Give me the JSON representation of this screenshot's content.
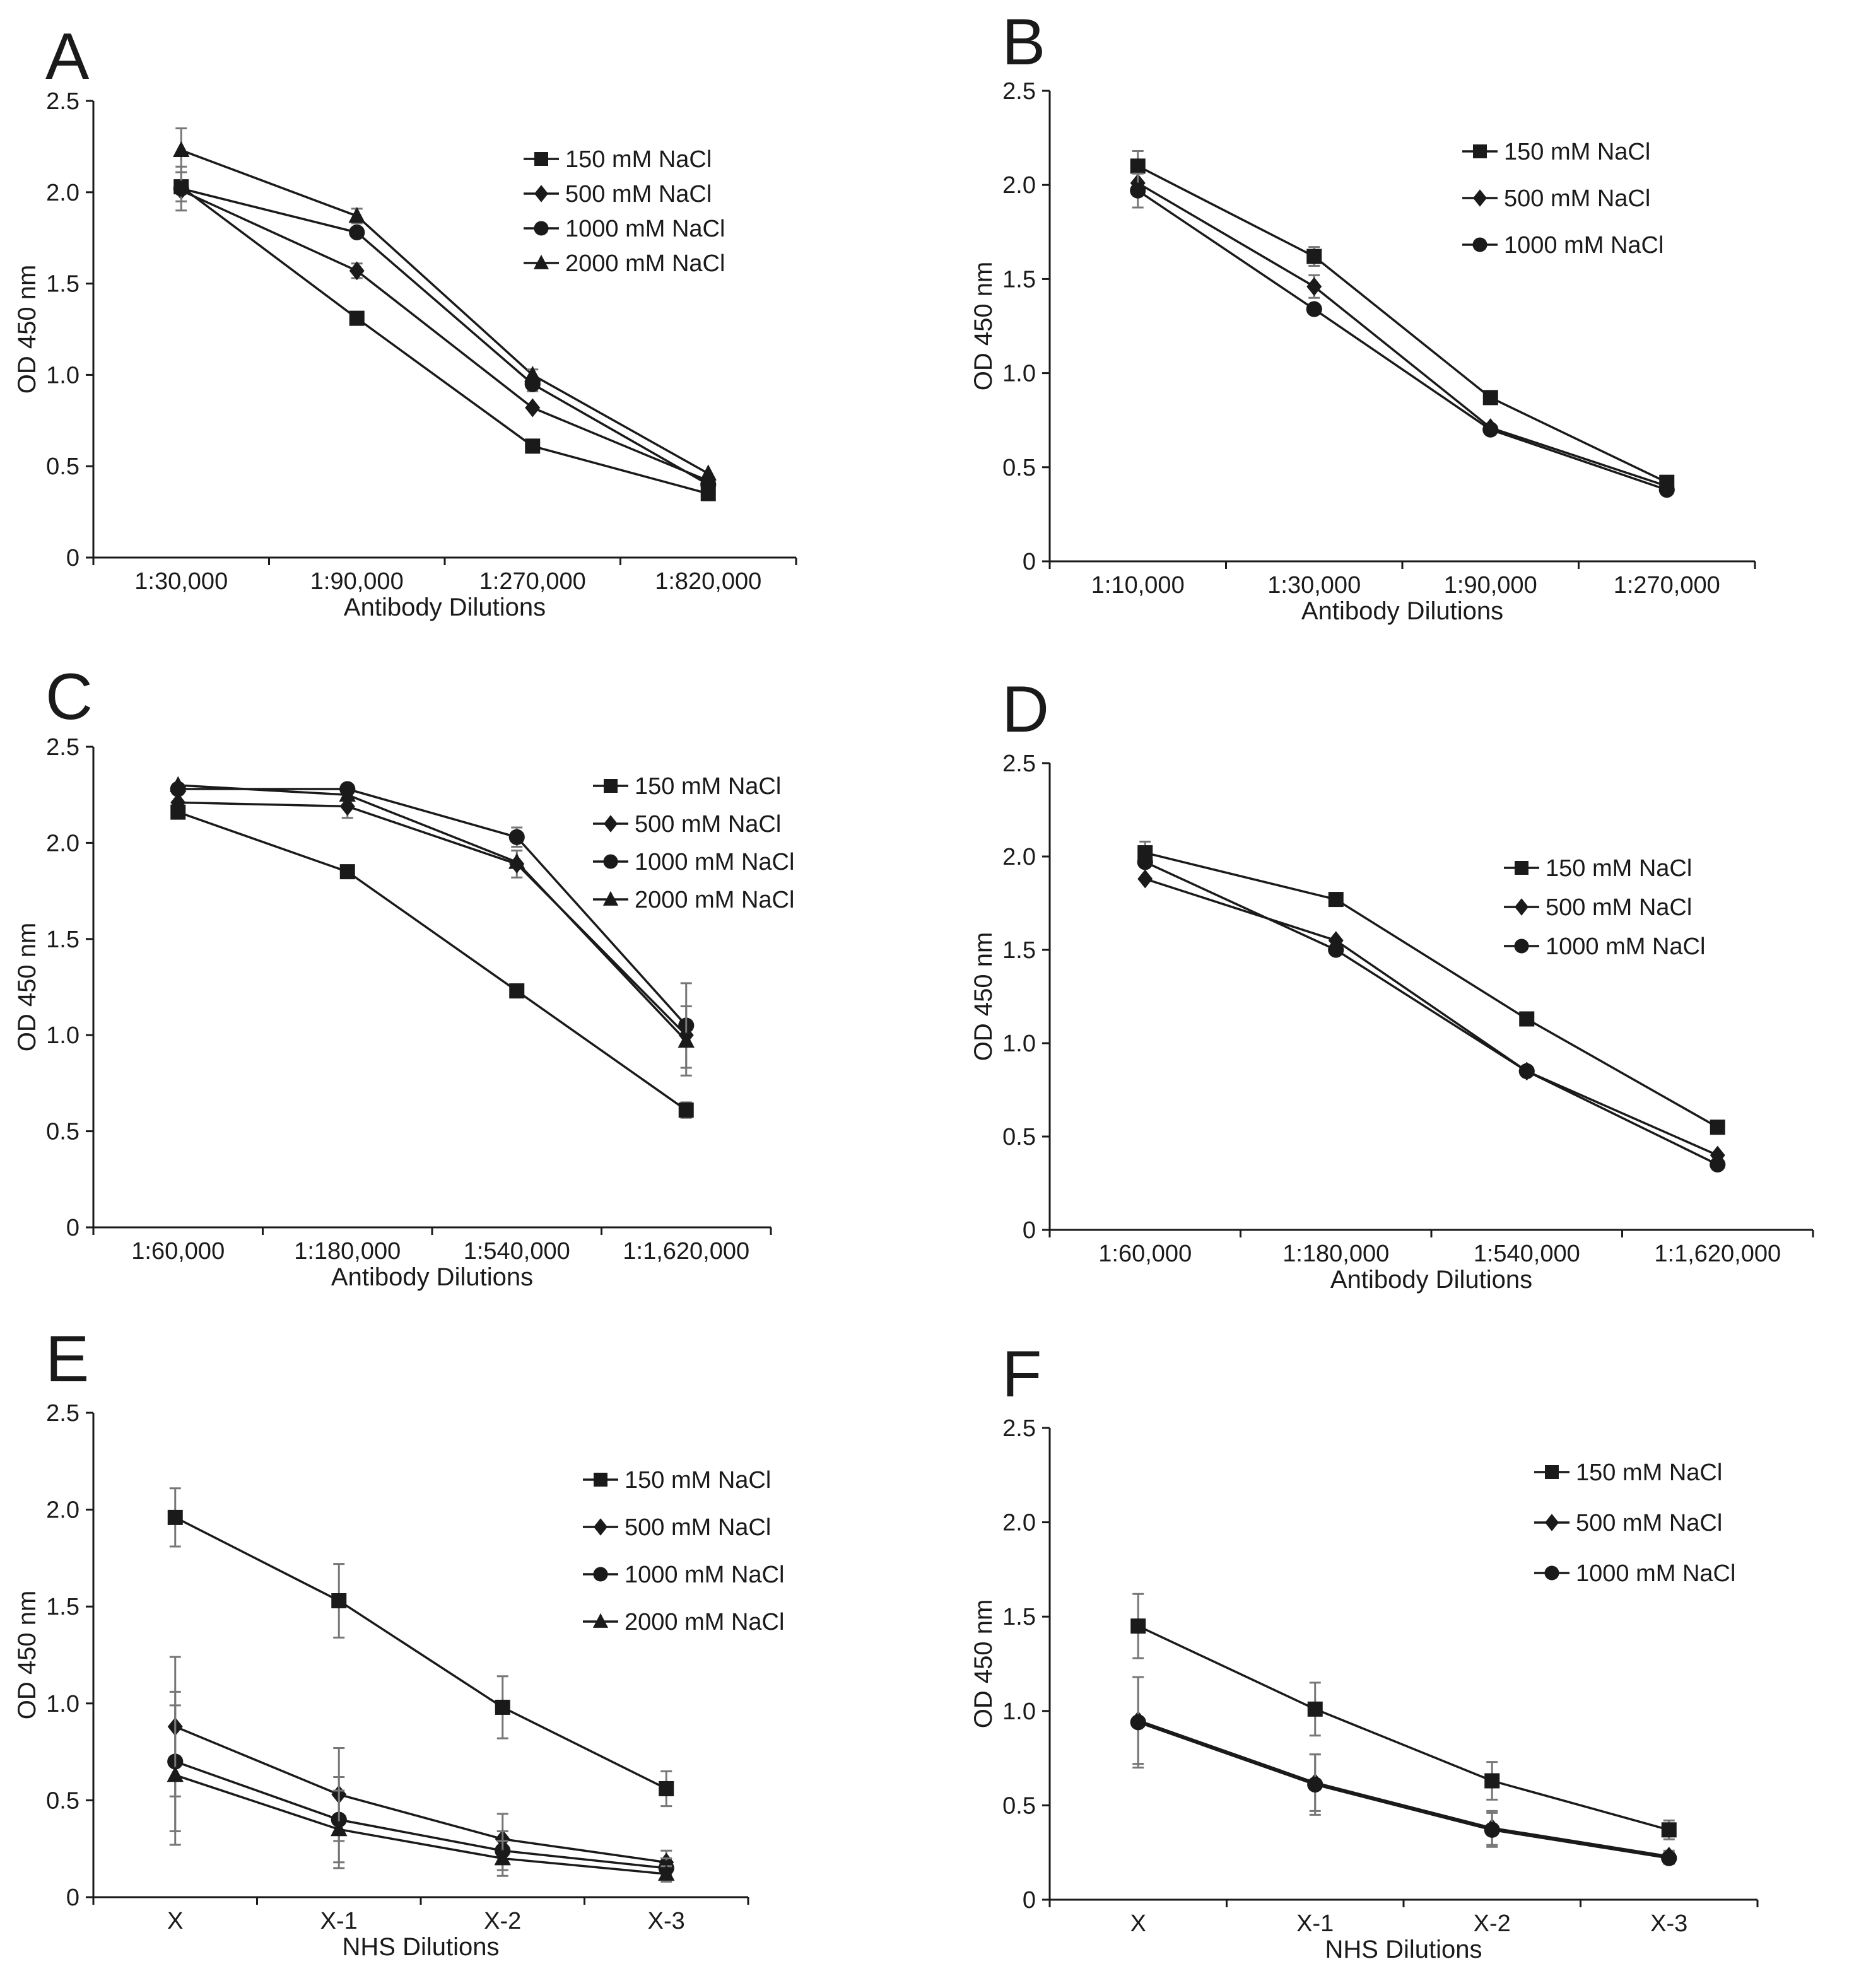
{
  "chart_data": [
    {
      "panel": "A",
      "type": "line",
      "xlabel": "Antibody Dilutions",
      "ylabel": "OD 450 nm",
      "categories": [
        "1:30,000",
        "1:90,000",
        "1:270,000",
        "1:820,000"
      ],
      "ylim": [
        0,
        2.5
      ],
      "yticks": [
        "0",
        "0.5",
        "1.0",
        "1.5",
        "2.0",
        "2.5"
      ],
      "legend_position": "top-right",
      "series": [
        {
          "name": "150 mM NaCl",
          "marker": "square",
          "values": [
            2.03,
            1.31,
            0.61,
            0.35
          ],
          "errors": [
            0.08,
            0,
            0,
            0
          ]
        },
        {
          "name": "500 mM NaCl",
          "marker": "diamond",
          "values": [
            2.01,
            1.57,
            0.82,
            0.42
          ],
          "errors": [
            0,
            0.04,
            0,
            0
          ]
        },
        {
          "name": "1000 mM NaCl",
          "marker": "circle",
          "values": [
            2.02,
            1.78,
            0.95,
            0.4
          ],
          "errors": [
            0.12,
            0,
            0.04,
            0
          ]
        },
        {
          "name": "2000 mM NaCl",
          "marker": "triangle",
          "values": [
            2.23,
            1.87,
            1.0,
            0.46
          ],
          "errors": [
            0.12,
            0.04,
            0.03,
            0
          ]
        }
      ]
    },
    {
      "panel": "B",
      "type": "line",
      "xlabel": "Antibody Dilutions",
      "ylabel": "OD 450 nm",
      "categories": [
        "1:10,000",
        "1:30,000",
        "1:90,000",
        "1:270,000"
      ],
      "ylim": [
        0,
        2.5
      ],
      "yticks": [
        "0",
        "0.5",
        "1.0",
        "1.5",
        "2.0",
        "2.5"
      ],
      "legend_position": "top-right",
      "series": [
        {
          "name": "150 mM NaCl",
          "marker": "square",
          "values": [
            2.1,
            1.62,
            0.87,
            0.42
          ],
          "errors": [
            0.08,
            0.05,
            0,
            0
          ]
        },
        {
          "name": "500 mM NaCl",
          "marker": "diamond",
          "values": [
            2.01,
            1.46,
            0.71,
            0.4
          ],
          "errors": [
            0,
            0.06,
            0,
            0
          ]
        },
        {
          "name": "1000 mM NaCl",
          "marker": "circle",
          "values": [
            1.97,
            1.34,
            0.7,
            0.38
          ],
          "errors": [
            0.09,
            0,
            0,
            0
          ]
        }
      ]
    },
    {
      "panel": "C",
      "type": "line",
      "xlabel": "Antibody Dilutions",
      "ylabel": "OD 450 nm",
      "categories": [
        "1:60,000",
        "1:180,000",
        "1:540,000",
        "1:1,620,000"
      ],
      "ylim": [
        0,
        2.5
      ],
      "yticks": [
        "0",
        "0.5",
        "1.0",
        "1.5",
        "2.0",
        "2.5"
      ],
      "legend_position": "top-right",
      "series": [
        {
          "name": "150 mM NaCl",
          "marker": "square",
          "values": [
            2.16,
            1.85,
            1.23,
            0.61
          ],
          "errors": [
            0,
            0,
            0,
            0.04
          ]
        },
        {
          "name": "500 mM NaCl",
          "marker": "diamond",
          "values": [
            2.21,
            2.19,
            1.89,
            1.0
          ],
          "errors": [
            0,
            0.06,
            0.07,
            0
          ]
        },
        {
          "name": "1000 mM NaCl",
          "marker": "circle",
          "values": [
            2.28,
            2.28,
            2.03,
            1.05
          ],
          "errors": [
            0,
            0,
            0.05,
            0.22
          ]
        },
        {
          "name": "2000 mM NaCl",
          "marker": "triangle",
          "values": [
            2.3,
            2.25,
            1.9,
            0.97
          ],
          "errors": [
            0,
            0,
            0,
            0.18
          ]
        }
      ]
    },
    {
      "panel": "D",
      "type": "line",
      "xlabel": "Antibody Dilutions",
      "ylabel": "OD 450 nm",
      "categories": [
        "1:60,000",
        "1:180,000",
        "1:540,000",
        "1:1,620,000"
      ],
      "ylim": [
        0,
        2.5
      ],
      "yticks": [
        "0",
        "0.5",
        "1.0",
        "1.5",
        "2.0",
        "2.5"
      ],
      "legend_position": "top-right",
      "series": [
        {
          "name": "150 mM NaCl",
          "marker": "square",
          "values": [
            2.02,
            1.77,
            1.13,
            0.55
          ],
          "errors": [
            0.06,
            0,
            0,
            0
          ]
        },
        {
          "name": "500 mM NaCl",
          "marker": "diamond",
          "values": [
            1.88,
            1.55,
            0.85,
            0.4
          ],
          "errors": [
            0,
            0,
            0,
            0
          ]
        },
        {
          "name": "1000 mM NaCl",
          "marker": "circle",
          "values": [
            1.97,
            1.5,
            0.85,
            0.35
          ],
          "errors": [
            0,
            0,
            0,
            0
          ]
        }
      ]
    },
    {
      "panel": "E",
      "type": "line",
      "xlabel": "NHS Dilutions",
      "ylabel": "OD 450 nm",
      "categories": [
        "X",
        "X-1",
        "X-2",
        "X-3"
      ],
      "ylim": [
        0,
        2.5
      ],
      "yticks": [
        "0",
        "0.5",
        "1.0",
        "1.5",
        "2.0",
        "2.5"
      ],
      "legend_position": "top-right",
      "series": [
        {
          "name": "150 mM NaCl",
          "marker": "square",
          "values": [
            1.96,
            1.53,
            0.98,
            0.56
          ],
          "errors": [
            0.15,
            0.19,
            0.16,
            0.09
          ]
        },
        {
          "name": "500 mM NaCl",
          "marker": "diamond",
          "values": [
            0.88,
            0.53,
            0.3,
            0.18
          ],
          "errors": [
            0.36,
            0.24,
            0.13,
            0.06
          ]
        },
        {
          "name": "1000 mM NaCl",
          "marker": "circle",
          "values": [
            0.7,
            0.4,
            0.24,
            0.15
          ],
          "errors": [
            0.36,
            0.22,
            0.1,
            0.05
          ]
        },
        {
          "name": "2000 mM NaCl",
          "marker": "triangle",
          "values": [
            0.63,
            0.35,
            0.2,
            0.12
          ],
          "errors": [
            0.36,
            0.2,
            0.09,
            0.04
          ]
        }
      ]
    },
    {
      "panel": "F",
      "type": "line",
      "xlabel": "NHS Dilutions",
      "ylabel": "OD 450 nm",
      "categories": [
        "X",
        "X-1",
        "X-2",
        "X-3"
      ],
      "ylim": [
        0,
        2.5
      ],
      "yticks": [
        "0",
        "0.5",
        "1.0",
        "1.5",
        "2.0",
        "2.5"
      ],
      "legend_position": "top-right",
      "series": [
        {
          "name": "150 mM NaCl",
          "marker": "square",
          "values": [
            1.45,
            1.01,
            0.63,
            0.37
          ],
          "errors": [
            0.17,
            0.14,
            0.1,
            0.05
          ]
        },
        {
          "name": "500 mM NaCl",
          "marker": "diamond",
          "values": [
            0.95,
            0.62,
            0.38,
            0.23
          ],
          "errors": [
            0.23,
            0.15,
            0.09,
            0.03
          ]
        },
        {
          "name": "1000 mM NaCl",
          "marker": "circle",
          "values": [
            0.94,
            0.61,
            0.37,
            0.22
          ],
          "errors": [
            0.24,
            0.16,
            0.09,
            0.03
          ]
        }
      ]
    }
  ]
}
